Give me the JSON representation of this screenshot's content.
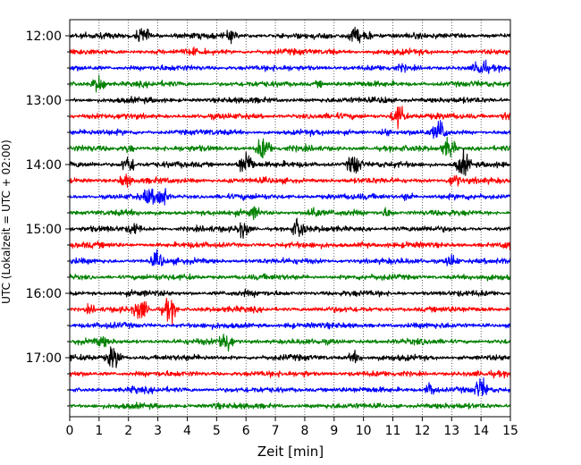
{
  "chart_data": {
    "type": "line",
    "title": "",
    "xlabel": "Zeit  [min]",
    "ylabel": "UTC (Lokalzeit = UTC + 02:00)",
    "xlim": [
      0,
      15
    ],
    "x_ticks": [
      0,
      1,
      2,
      3,
      4,
      5,
      6,
      7,
      8,
      9,
      10,
      11,
      12,
      13,
      14,
      15
    ],
    "y_tick_labels": [
      "12:00",
      "13:00",
      "14:00",
      "15:00",
      "16:00",
      "17:00"
    ],
    "grid": "vertical dotted at each minute",
    "trace_interval_minutes": 15,
    "trace_colors": [
      "#000000",
      "#ff0000",
      "#0000ff",
      "#008000"
    ],
    "series": [
      {
        "start": "12:00",
        "color": "#000000",
        "events": [
          [
            2.5,
            1.0
          ],
          [
            5.5,
            0.7
          ],
          [
            9.7,
            1.0
          ],
          [
            10.1,
            0.6
          ]
        ]
      },
      {
        "start": "12:15",
        "color": "#ff0000",
        "events": [
          [
            4.2,
            0.5
          ],
          [
            8.9,
            0.4
          ]
        ]
      },
      {
        "start": "12:30",
        "color": "#0000ff",
        "events": [
          [
            11.3,
            0.5
          ],
          [
            14.0,
            1.2
          ]
        ]
      },
      {
        "start": "12:45",
        "color": "#008000",
        "events": [
          [
            1.0,
            1.0
          ],
          [
            8.5,
            0.4
          ]
        ]
      },
      {
        "start": "13:00",
        "color": "#000000",
        "events": [
          [
            10.7,
            0.5
          ]
        ]
      },
      {
        "start": "13:15",
        "color": "#ff0000",
        "events": [
          [
            11.2,
            1.3
          ],
          [
            14.9,
            0.6
          ]
        ]
      },
      {
        "start": "13:30",
        "color": "#0000ff",
        "events": [
          [
            12.6,
            1.4
          ],
          [
            10.8,
            0.5
          ]
        ]
      },
      {
        "start": "13:45",
        "color": "#008000",
        "events": [
          [
            6.6,
            1.4
          ],
          [
            12.9,
            1.2
          ],
          [
            2.0,
            0.5
          ]
        ]
      },
      {
        "start": "14:00",
        "color": "#000000",
        "events": [
          [
            2.0,
            1.1
          ],
          [
            6.0,
            1.6
          ],
          [
            9.7,
            1.3
          ],
          [
            13.4,
            1.4
          ]
        ]
      },
      {
        "start": "14:15",
        "color": "#ff0000",
        "events": [
          [
            1.9,
            0.8
          ],
          [
            13.1,
            0.8
          ],
          [
            5.5,
            0.4
          ]
        ]
      },
      {
        "start": "14:30",
        "color": "#0000ff",
        "events": [
          [
            3.1,
            1.4
          ],
          [
            2.7,
            1.0
          ],
          [
            11.5,
            0.5
          ]
        ]
      },
      {
        "start": "14:45",
        "color": "#008000",
        "events": [
          [
            6.3,
            0.8
          ],
          [
            8.3,
            0.8
          ],
          [
            10.8,
            0.6
          ]
        ]
      },
      {
        "start": "15:00",
        "color": "#000000",
        "events": [
          [
            2.2,
            0.8
          ],
          [
            5.9,
            1.0
          ],
          [
            7.8,
            1.2
          ]
        ]
      },
      {
        "start": "15:15",
        "color": "#ff0000",
        "events": [
          [
            14.9,
            0.6
          ],
          [
            10.0,
            0.4
          ]
        ]
      },
      {
        "start": "15:30",
        "color": "#0000ff",
        "events": [
          [
            3.0,
            1.0
          ],
          [
            13.0,
            0.8
          ]
        ]
      },
      {
        "start": "15:45",
        "color": "#008000",
        "events": [
          [
            4.0,
            0.4
          ]
        ]
      },
      {
        "start": "16:00",
        "color": "#000000",
        "events": [
          [
            6.0,
            0.4
          ]
        ]
      },
      {
        "start": "16:15",
        "color": "#ff0000",
        "events": [
          [
            2.4,
            1.3
          ],
          [
            3.4,
            1.3
          ],
          [
            0.7,
            0.5
          ]
        ]
      },
      {
        "start": "16:30",
        "color": "#0000ff",
        "events": [
          [
            7.5,
            0.4
          ]
        ]
      },
      {
        "start": "16:45",
        "color": "#008000",
        "events": [
          [
            1.1,
            0.7
          ],
          [
            5.3,
            1.4
          ]
        ]
      },
      {
        "start": "17:00",
        "color": "#000000",
        "events": [
          [
            1.5,
            1.3
          ],
          [
            9.7,
            0.7
          ]
        ]
      },
      {
        "start": "17:15",
        "color": "#ff0000",
        "events": [
          [
            8.0,
            0.4
          ]
        ]
      },
      {
        "start": "17:30",
        "color": "#0000ff",
        "events": [
          [
            12.3,
            0.8
          ],
          [
            14.0,
            1.3
          ],
          [
            2.2,
            0.5
          ]
        ]
      },
      {
        "start": "17:45",
        "color": "#008000",
        "events": [
          [
            5.0,
            0.4
          ]
        ]
      }
    ]
  }
}
